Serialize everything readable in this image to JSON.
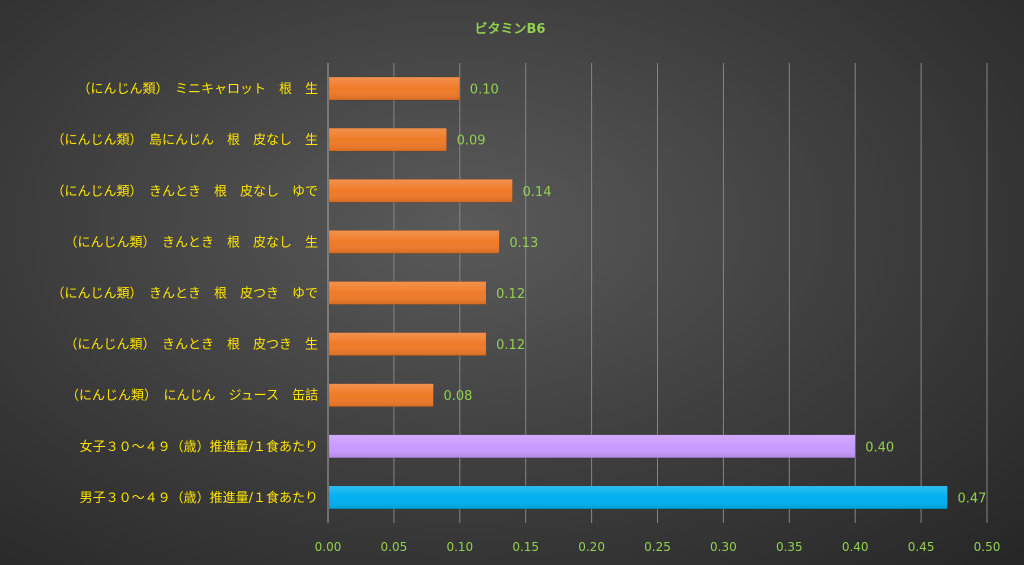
{
  "chart_data": {
    "type": "bar",
    "orientation": "horizontal",
    "title": "ビタミンB6",
    "xlabel": "",
    "ylabel": "",
    "xlim": [
      0,
      0.5
    ],
    "x_ticks": [
      "0.00",
      "0.05",
      "0.10",
      "0.15",
      "0.20",
      "0.25",
      "0.30",
      "0.35",
      "0.40",
      "0.45",
      "0.50"
    ],
    "grid": "vertical",
    "legend": "none",
    "categories": [
      "（にんじん類）　ミニキャロット　根　生",
      "（にんじん類）　島にんじん　根　皮なし　生",
      "（にんじん類）　きんとき　根　皮なし　ゆで",
      "（にんじん類）　きんとき　根　皮なし　生",
      "（にんじん類）　きんとき　根　皮つき　ゆで",
      "（にんじん類）　きんとき　根　皮つき　生",
      "（にんじん類）　にんじん　ジュース　缶詰",
      "女子３０～４９（歳）推進量/１食あたり",
      "男子３０～４９（歳）推進量/１食あたり"
    ],
    "values": [
      0.1,
      0.09,
      0.14,
      0.13,
      0.12,
      0.12,
      0.08,
      0.4,
      0.47
    ],
    "value_labels": [
      "0.10",
      "0.09",
      "0.14",
      "0.13",
      "0.12",
      "0.12",
      "0.08",
      "0.40",
      "0.47"
    ],
    "bar_colors": [
      "#f07a28",
      "#f07a28",
      "#f07a28",
      "#f07a28",
      "#f07a28",
      "#f07a28",
      "#f07a28",
      "#c89aff",
      "#00b0f0"
    ],
    "colors": {
      "title": "#92d050",
      "category_label": "#ffe400",
      "tick_label": "#92d050",
      "value_label": "#92d050",
      "grid": "#858585"
    }
  }
}
